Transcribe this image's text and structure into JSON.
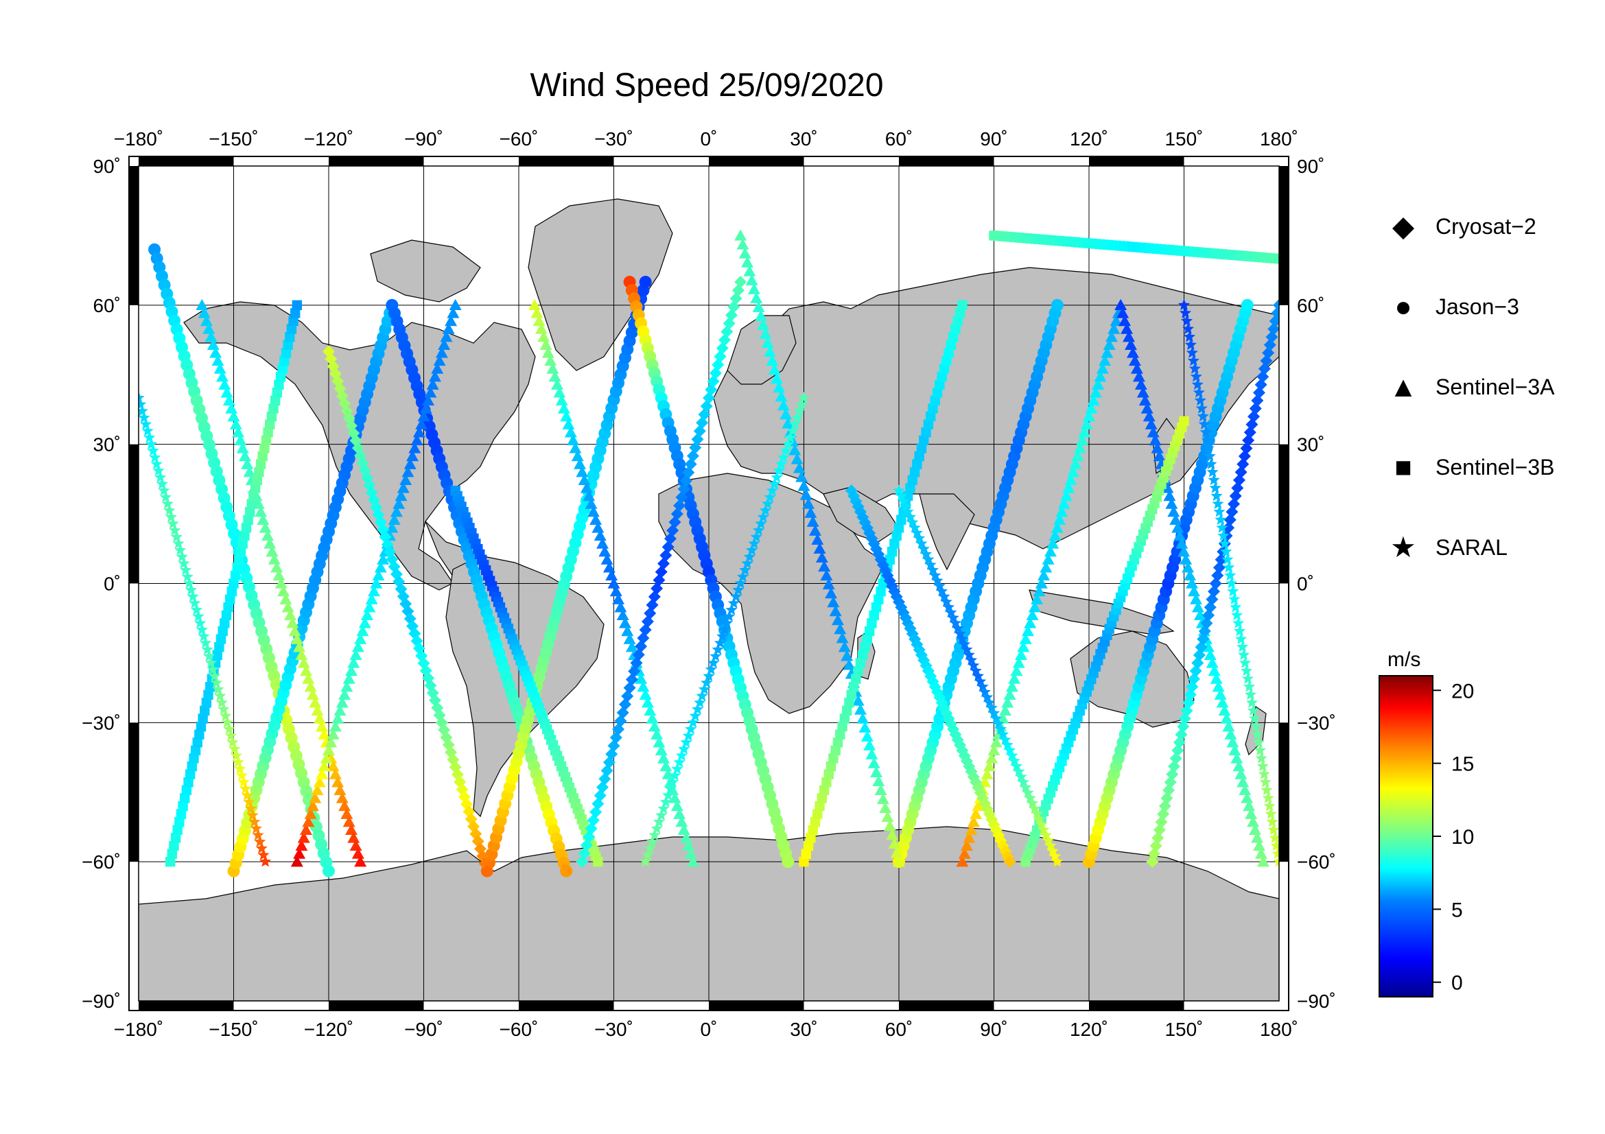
{
  "title": "Wind Speed 25/09/2020",
  "lon_ticks": [
    "−180˚",
    "−150˚",
    "−120˚",
    "−90˚",
    "−60˚",
    "−30˚",
    "0˚",
    "30˚",
    "60˚",
    "90˚",
    "120˚",
    "150˚",
    "180˚"
  ],
  "lat_ticks_left": [
    "90˚",
    "60˚",
    "30˚",
    "0˚",
    "−30˚",
    "−60˚",
    "−90˚"
  ],
  "lat_ticks_right": [
    "90˚",
    "60˚",
    "30˚",
    "0˚",
    "−30˚",
    "−60˚",
    "−90˚"
  ],
  "legend": [
    {
      "label": "Cryosat−2",
      "icon": "diamond-icon",
      "glyph": "◆"
    },
    {
      "label": "Jason−3",
      "icon": "circle-icon",
      "glyph": "●"
    },
    {
      "label": "Sentinel−3A",
      "icon": "triangle-icon",
      "glyph": "▲"
    },
    {
      "label": "Sentinel−3B",
      "icon": "square-icon",
      "glyph": "■"
    },
    {
      "label": "SARAL",
      "icon": "star-icon",
      "glyph": "★"
    }
  ],
  "colorbar": {
    "unit": "m/s",
    "ticks": [
      {
        "label": "20",
        "value": 20
      },
      {
        "label": "15",
        "value": 15
      },
      {
        "label": "10",
        "value": 10
      },
      {
        "label": "5",
        "value": 5
      },
      {
        "label": "0",
        "value": 0
      }
    ],
    "range": [
      -1,
      21
    ]
  },
  "colors": {
    "land": "#bfbfbf",
    "ocean": "#ffffff",
    "grid": "#000000",
    "frame_dark": "#000000",
    "colormap": [
      "#00008f",
      "#0000ff",
      "#0080ff",
      "#00ffff",
      "#80ff80",
      "#ffff00",
      "#ff8000",
      "#ff0000",
      "#800000"
    ]
  },
  "chart_data": {
    "type": "scatter",
    "projection": "equirectangular",
    "xlim": [
      -180,
      180
    ],
    "ylim": [
      -90,
      90
    ],
    "grid": true,
    "legend_position": "right",
    "variable": "wind speed (m/s)",
    "tracks": [
      {
        "satellite": "Jason-3",
        "lon0": -175,
        "lat0": 72,
        "lon1": -120,
        "lat1": -62,
        "speed": [
          5,
          9,
          7,
          12,
          8
        ]
      },
      {
        "satellite": "Jason-3",
        "lon0": -150,
        "lat0": -62,
        "lon1": -100,
        "lat1": 60,
        "speed": [
          14,
          8,
          5,
          4,
          6
        ]
      },
      {
        "satellite": "Jason-3",
        "lon0": -100,
        "lat0": 60,
        "lon1": -45,
        "lat1": -62,
        "speed": [
          4,
          3,
          6,
          9,
          15
        ]
      },
      {
        "satellite": "Jason-3",
        "lon0": -70,
        "lat0": -62,
        "lon1": -20,
        "lat1": 65,
        "speed": [
          16,
          11,
          8,
          6,
          3
        ]
      },
      {
        "satellite": "Jason-3",
        "lon0": -25,
        "lat0": 65,
        "lon1": 25,
        "lat1": -60,
        "speed": [
          17,
          5,
          3,
          9,
          11
        ]
      },
      {
        "satellite": "Jason-3",
        "lon0": 60,
        "lat0": -60,
        "lon1": 110,
        "lat1": 60,
        "speed": [
          13,
          7,
          5,
          4,
          6
        ]
      },
      {
        "satellite": "Jason-3",
        "lon0": 120,
        "lat0": -60,
        "lon1": 170,
        "lat1": 60,
        "speed": [
          14,
          8,
          3,
          5,
          7
        ]
      },
      {
        "satellite": "Sentinel-3A",
        "lon0": -160,
        "lat0": 60,
        "lon1": -110,
        "lat1": -60,
        "speed": [
          6,
          8,
          10,
          12,
          18
        ]
      },
      {
        "satellite": "Sentinel-3A",
        "lon0": -130,
        "lat0": -60,
        "lon1": -80,
        "lat1": 60,
        "speed": [
          19,
          9,
          7,
          4,
          5
        ]
      },
      {
        "satellite": "Sentinel-3A",
        "lon0": -55,
        "lat0": 60,
        "lon1": -5,
        "lat1": -60,
        "speed": [
          12,
          6,
          4,
          8,
          9
        ]
      },
      {
        "satellite": "Sentinel-3A",
        "lon0": 10,
        "lat0": 75,
        "lon1": 60,
        "lat1": -60,
        "speed": [
          9,
          7,
          4,
          6,
          12
        ]
      },
      {
        "satellite": "Sentinel-3A",
        "lon0": 80,
        "lat0": -60,
        "lon1": 130,
        "lat1": 60,
        "speed": [
          16,
          9,
          6,
          8,
          5
        ]
      },
      {
        "satellite": "Sentinel-3A",
        "lon0": 130,
        "lat0": 60,
        "lon1": 175,
        "lat1": -60,
        "speed": [
          3,
          4,
          6,
          8,
          10
        ]
      },
      {
        "satellite": "Sentinel-3B",
        "lon0": -170,
        "lat0": -60,
        "lon1": -130,
        "lat1": 60,
        "speed": [
          8,
          6,
          7,
          10,
          5
        ]
      },
      {
        "satellite": "Sentinel-3B",
        "lon0": -80,
        "lat0": 20,
        "lon1": -35,
        "lat1": -60,
        "speed": [
          5,
          3,
          7,
          9,
          11
        ]
      },
      {
        "satellite": "Sentinel-3B",
        "lon0": 30,
        "lat0": -60,
        "lon1": 80,
        "lat1": 60,
        "speed": [
          13,
          9,
          7,
          6,
          8
        ]
      },
      {
        "satellite": "Sentinel-3B",
        "lon0": 100,
        "lat0": -60,
        "lon1": 150,
        "lat1": 35,
        "speed": [
          10,
          7,
          5,
          9,
          12
        ]
      },
      {
        "satellite": "Sentinel-3B",
        "lon0": 90,
        "lat0": 75,
        "lon1": 180,
        "lat1": 70,
        "speed": [
          9,
          8,
          7,
          8,
          9
        ]
      },
      {
        "satellite": "Cryosat-2",
        "lon0": -120,
        "lat0": 50,
        "lon1": -70,
        "lat1": -62,
        "speed": [
          12,
          8,
          6,
          10,
          16
        ]
      },
      {
        "satellite": "Cryosat-2",
        "lon0": -40,
        "lat0": -60,
        "lon1": 10,
        "lat1": 65,
        "speed": [
          8,
          5,
          3,
          6,
          9
        ]
      },
      {
        "satellite": "Cryosat-2",
        "lon0": 45,
        "lat0": 20,
        "lon1": 95,
        "lat1": -60,
        "speed": [
          6,
          4,
          7,
          9,
          14
        ]
      },
      {
        "satellite": "Cryosat-2",
        "lon0": 140,
        "lat0": -60,
        "lon1": 180,
        "lat1": 60,
        "speed": [
          11,
          8,
          4,
          3,
          5
        ]
      },
      {
        "satellite": "SARAL",
        "lon0": -180,
        "lat0": 40,
        "lon1": -140,
        "lat1": -60,
        "speed": [
          6,
          9,
          8,
          11,
          17
        ]
      },
      {
        "satellite": "SARAL",
        "lon0": -20,
        "lat0": -60,
        "lon1": 30,
        "lat1": 40,
        "speed": [
          10,
          7,
          5,
          6,
          9
        ]
      },
      {
        "satellite": "SARAL",
        "lon0": 60,
        "lat0": 20,
        "lon1": 110,
        "lat1": -60,
        "speed": [
          7,
          5,
          4,
          8,
          13
        ]
      },
      {
        "satellite": "SARAL",
        "lon0": 150,
        "lat0": 60,
        "lon1": 180,
        "lat1": -60,
        "speed": [
          3,
          5,
          7,
          9,
          12
        ]
      }
    ]
  }
}
